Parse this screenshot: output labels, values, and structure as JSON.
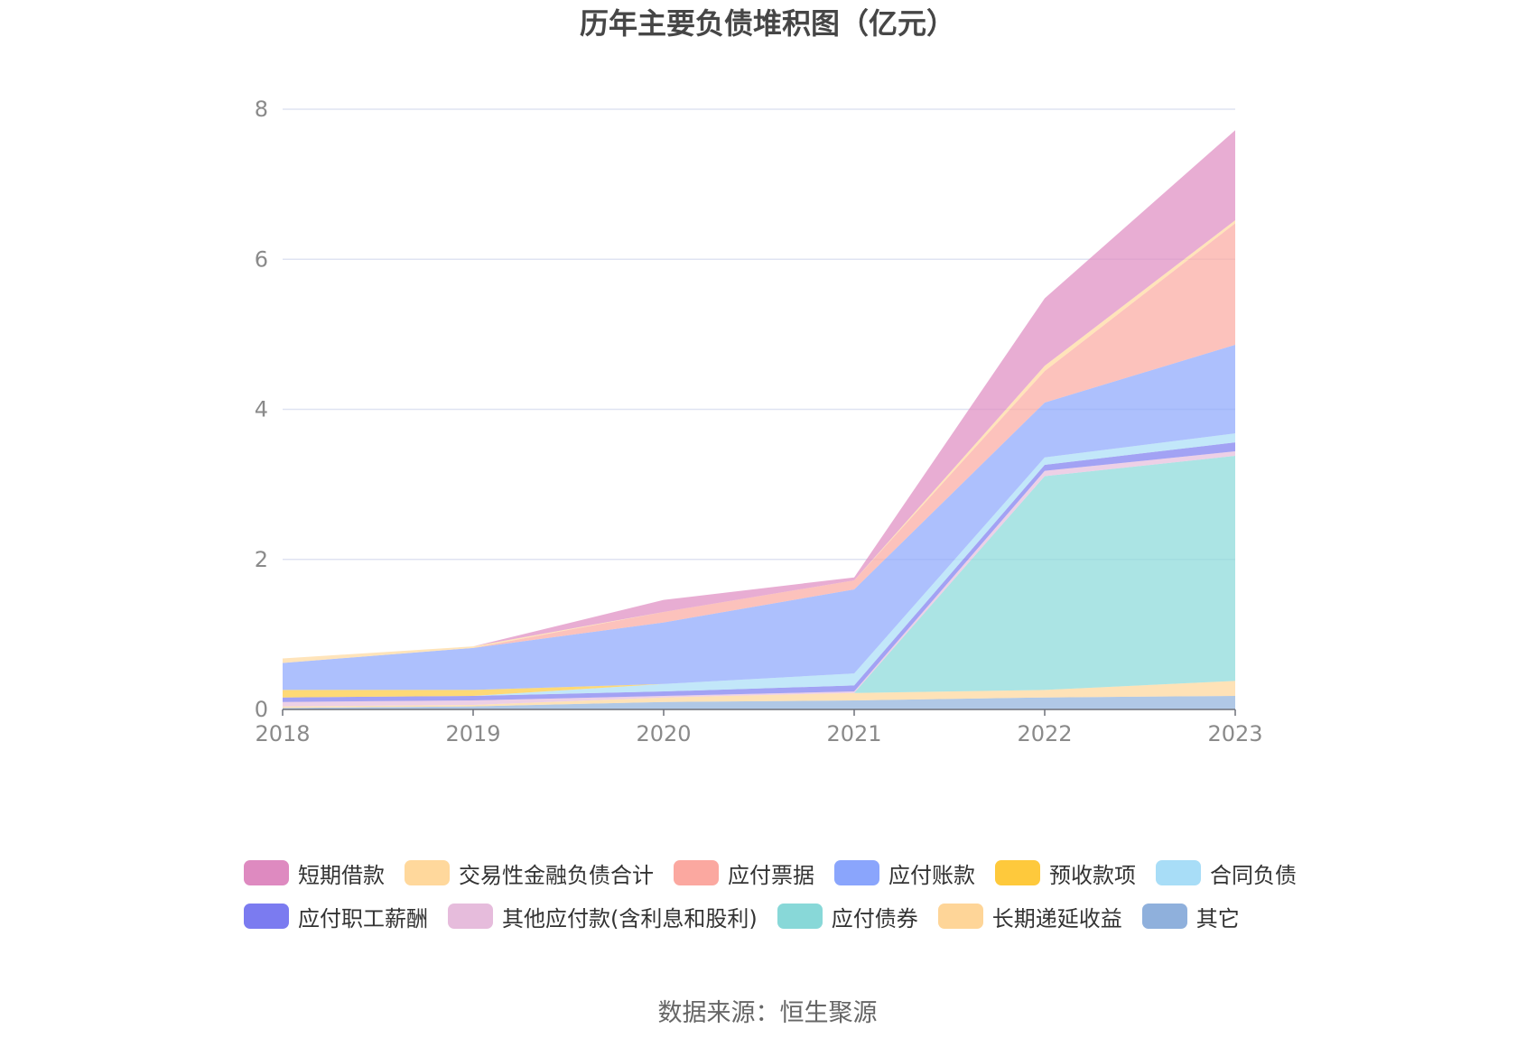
{
  "chart_data": {
    "type": "area",
    "stacked": true,
    "title": "历年主要负债堆积图（亿元）",
    "source": "数据来源：恒生聚源",
    "x": [
      "2018",
      "2019",
      "2020",
      "2021",
      "2022",
      "2023"
    ],
    "ylim": [
      0,
      8
    ],
    "yticks": [
      "0",
      "2",
      "4",
      "6",
      "8"
    ],
    "grid": true,
    "legend_position": "bottom",
    "series": [
      {
        "name": "其它",
        "color": "#8fb0dc",
        "values": [
          0.02,
          0.04,
          0.1,
          0.12,
          0.16,
          0.18
        ]
      },
      {
        "name": "长期递延收益",
        "color": "#fed598",
        "values": [
          0.02,
          0.02,
          0.06,
          0.1,
          0.1,
          0.2
        ]
      },
      {
        "name": "应付债券",
        "color": "#88d8d8",
        "values": [
          0,
          0,
          0,
          0,
          2.85,
          3.0
        ]
      },
      {
        "name": "其他应付款(含利息和股利)",
        "color": "#e6bcdc",
        "values": [
          0.06,
          0.06,
          0.02,
          0.02,
          0.07,
          0.06
        ]
      },
      {
        "name": "应付职工薪酬",
        "color": "#7b7bf0",
        "values": [
          0.06,
          0.06,
          0.06,
          0.08,
          0.08,
          0.12
        ]
      },
      {
        "name": "合同负债",
        "color": "#a8ddf7",
        "values": [
          0,
          0,
          0.1,
          0.16,
          0.1,
          0.12
        ]
      },
      {
        "name": "预收款项",
        "color": "#fec93c",
        "values": [
          0.1,
          0.08,
          0.0,
          0.0,
          0.0,
          0.0
        ]
      },
      {
        "name": "应付账款",
        "color": "#8aa5fc",
        "values": [
          0.36,
          0.56,
          0.82,
          1.12,
          0.73,
          1.18
        ]
      },
      {
        "name": "应付票据",
        "color": "#fba8a0",
        "values": [
          0,
          0,
          0.14,
          0.12,
          0.42,
          1.62
        ]
      },
      {
        "name": "交易性金融负债合计",
        "color": "#ffd89c",
        "values": [
          0.06,
          0.02,
          0.0,
          0.0,
          0.07,
          0.04
        ]
      },
      {
        "name": "短期借款",
        "color": "#de8ac0",
        "values": [
          0,
          0,
          0.16,
          0.04,
          0.9,
          1.2
        ]
      }
    ],
    "legend_order": [
      "短期借款",
      "交易性金融负债合计",
      "应付票据",
      "应付账款",
      "预收款项",
      "合同负债",
      "应付职工薪酬",
      "其他应付款(含利息和股利)",
      "应付债券",
      "长期递延收益",
      "其它"
    ]
  }
}
